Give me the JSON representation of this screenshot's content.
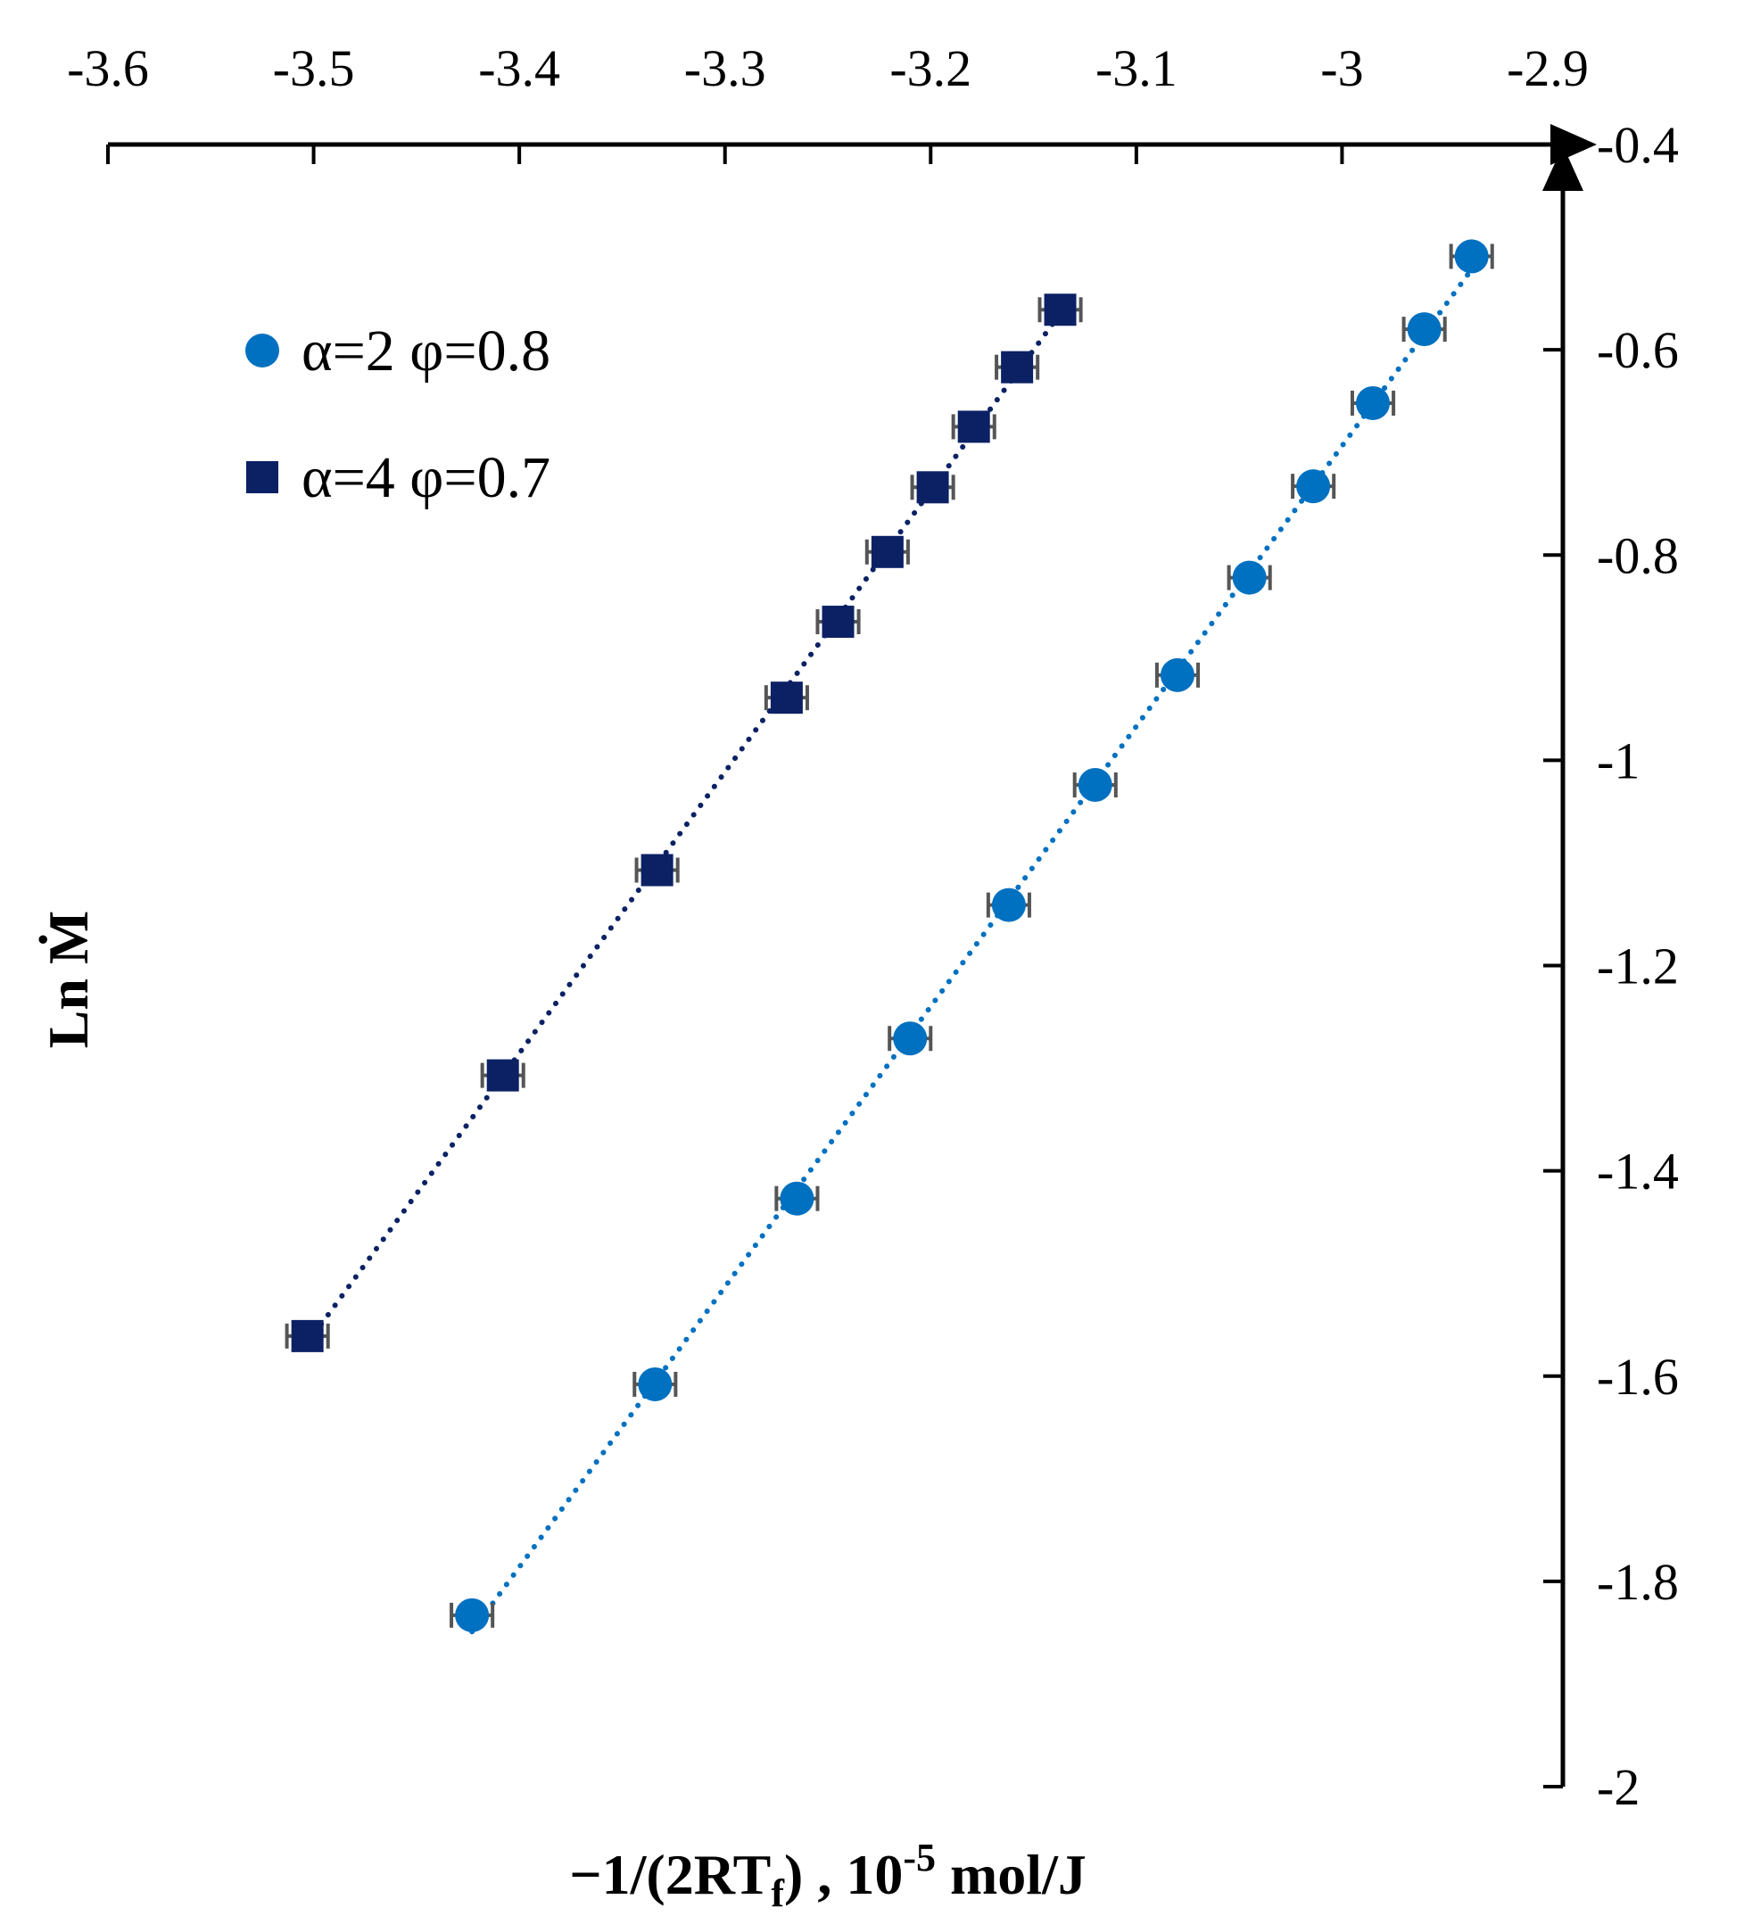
{
  "chart_data": {
    "type": "scatter",
    "title": "",
    "xlabel": "−1/(2RT",
    "xlabel_sub": "f",
    "xlabel_rest": ") , 10",
    "xlabel_sup": "-5",
    "xlabel_unit": " mol/J",
    "ylabel": "Ln Ṁ",
    "xlim": [
      -3.6,
      -2.9
    ],
    "ylim": [
      -2.0,
      -0.4
    ],
    "x_ticks": [
      "-3.6",
      "-3.5",
      "-3.4",
      "-3.3",
      "-3.2",
      "-3.1",
      "-3",
      "-2.9"
    ],
    "y_ticks": [
      "-0.4",
      "-0.6",
      "-0.8",
      "-1",
      "-1.2",
      "-1.4",
      "-1.6",
      "-1.8",
      "-2"
    ],
    "x_axis_position": "top",
    "y_axis_position": "right",
    "grid": false,
    "legend_position": "top-left",
    "x_error": 0.01,
    "series": [
      {
        "name": "α=2 φ=0.8",
        "marker": "circle",
        "color": "#0070C0",
        "trendline": "dotted",
        "points": [
          {
            "x": -3.423,
            "y": -1.833
          },
          {
            "x": -3.334,
            "y": -1.608
          },
          {
            "x": -3.265,
            "y": -1.427
          },
          {
            "x": -3.21,
            "y": -1.271
          },
          {
            "x": -3.162,
            "y": -1.141
          },
          {
            "x": -3.12,
            "y": -1.024
          },
          {
            "x": -3.08,
            "y": -0.917
          },
          {
            "x": -3.045,
            "y": -0.822
          },
          {
            "x": -3.014,
            "y": -0.733
          },
          {
            "x": -2.985,
            "y": -0.652
          },
          {
            "x": -2.96,
            "y": -0.58
          },
          {
            "x": -2.937,
            "y": -0.509
          }
        ]
      },
      {
        "name": "α=4 φ=0.7",
        "marker": "square",
        "color": "#0B2164",
        "trendline": "dotted",
        "points": [
          {
            "x": -3.503,
            "y": -1.561
          },
          {
            "x": -3.408,
            "y": -1.307
          },
          {
            "x": -3.333,
            "y": -1.107
          },
          {
            "x": -3.27,
            "y": -0.939
          },
          {
            "x": -3.245,
            "y": -0.865
          },
          {
            "x": -3.221,
            "y": -0.797
          },
          {
            "x": -3.199,
            "y": -0.734
          },
          {
            "x": -3.179,
            "y": -0.675
          },
          {
            "x": -3.158,
            "y": -0.617
          },
          {
            "x": -3.137,
            "y": -0.561
          }
        ]
      }
    ]
  }
}
